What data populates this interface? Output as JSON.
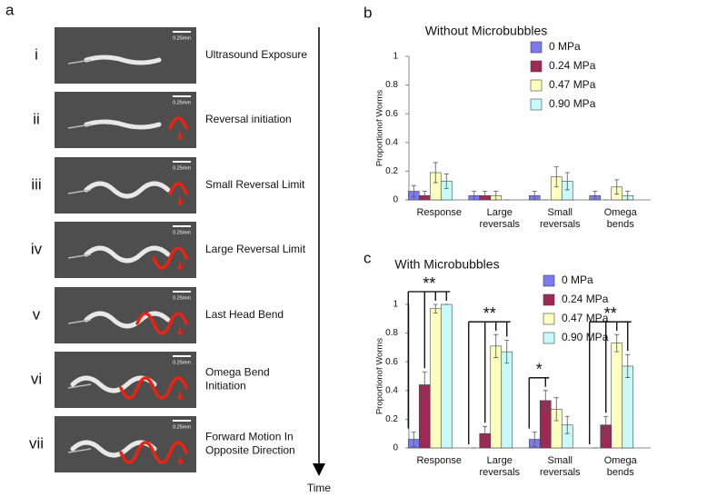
{
  "panel_a": {
    "label": "a",
    "time_label": "Time",
    "rows": [
      {
        "numeral": "i",
        "caption": [
          "Ultrasound Exposure"
        ],
        "scale": "0.25mm"
      },
      {
        "numeral": "ii",
        "caption": [
          "Reversal initiation"
        ],
        "scale": "0.25mm"
      },
      {
        "numeral": "iii",
        "caption": [
          "Small Reversal Limit"
        ],
        "scale": "0.25mm"
      },
      {
        "numeral": "iv",
        "caption": [
          "Large Reversal Limit"
        ],
        "scale": "0.25mm"
      },
      {
        "numeral": "v",
        "caption": [
          "Last Head Bend"
        ],
        "scale": "0.25mm"
      },
      {
        "numeral": "vi",
        "caption": [
          "Omega Bend",
          "Initiation"
        ],
        "scale": "0.25mm"
      },
      {
        "numeral": "vii",
        "caption": [
          "Forward Motion In",
          "Opposite Direction"
        ],
        "scale": "0.25mm"
      }
    ]
  },
  "chart_data": [
    {
      "type": "bar",
      "panel_label": "b",
      "title": "Without Microbubbles",
      "y_label": "Proportionof Worms",
      "categories": [
        "Response",
        "Large reversals",
        "Small reversals",
        "Omega bends"
      ],
      "ylim": [
        0,
        1
      ],
      "yticks": [
        0,
        0.2,
        0.4,
        0.6,
        0.8,
        1
      ],
      "series": [
        {
          "name": "0 MPa",
          "color": "#7b7bef",
          "values": [
            0.06,
            0.03,
            0.03,
            0.03
          ],
          "errors": [
            0.04,
            0.03,
            0.03,
            0.03
          ]
        },
        {
          "name": "0.24 MPa",
          "color": "#9c2a55",
          "values": [
            0.03,
            0.03,
            0,
            0
          ],
          "errors": [
            0.03,
            0.03,
            0,
            0
          ]
        },
        {
          "name": "0.47 MPa",
          "color": "#ffffc0",
          "values": [
            0.19,
            0.03,
            0.16,
            0.09
          ],
          "errors": [
            0.07,
            0.03,
            0.07,
            0.05
          ]
        },
        {
          "name": "0.90 MPa",
          "color": "#c8fafa",
          "values": [
            0.13,
            0,
            0.13,
            0.03
          ],
          "errors": [
            0.05,
            0,
            0.06,
            0.03
          ]
        }
      ],
      "annotations": []
    },
    {
      "type": "bar",
      "panel_label": "c",
      "title": "With Microbubbles",
      "y_label": "Proportionof Worms",
      "categories": [
        "Response",
        "Large reversals",
        "Small reversals",
        "Omega bends"
      ],
      "ylim": [
        0,
        1
      ],
      "yticks": [
        0,
        0.2,
        0.4,
        0.6,
        0.8,
        1
      ],
      "series": [
        {
          "name": "0 MPa",
          "color": "#7b7bef",
          "values": [
            0.06,
            0,
            0.06,
            0
          ],
          "errors": [
            0.05,
            0,
            0.05,
            0
          ]
        },
        {
          "name": "0.24 MPa",
          "color": "#9c2a55",
          "values": [
            0.44,
            0.1,
            0.33,
            0.16
          ],
          "errors": [
            0.09,
            0.05,
            0.07,
            0.06
          ]
        },
        {
          "name": "0.47 MPa",
          "color": "#ffffc0",
          "values": [
            0.97,
            0.71,
            0.27,
            0.73
          ],
          "errors": [
            0.03,
            0.08,
            0.08,
            0.06
          ]
        },
        {
          "name": "0.90 MPa",
          "color": "#c8fafa",
          "values": [
            1,
            0.67,
            0.16,
            0.57
          ],
          "errors": [
            0,
            0.08,
            0.06,
            0.08
          ]
        }
      ],
      "annotations": [
        "**",
        "**",
        "*",
        "**"
      ]
    }
  ]
}
